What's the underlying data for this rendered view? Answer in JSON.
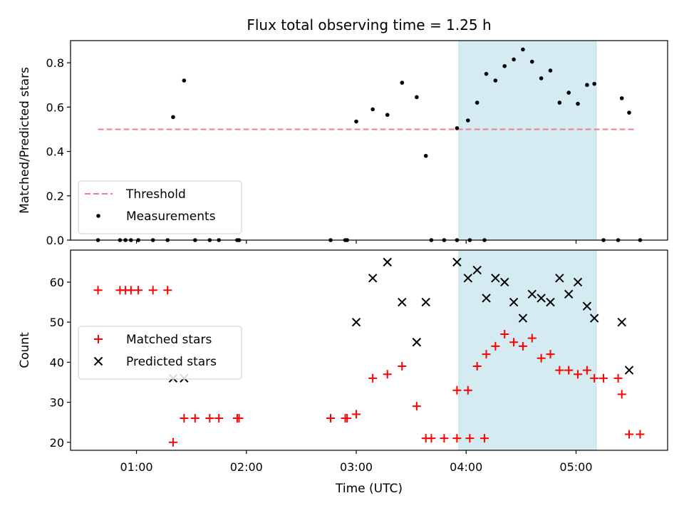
{
  "chart_data": [
    {
      "type": "scatter",
      "panel": "top",
      "title": "Flux total observing time = 1.25 h",
      "xlabel": "",
      "ylabel": "Matched/Predicted stars",
      "ylim": [
        0,
        0.9
      ],
      "yticks": [
        0.0,
        0.2,
        0.4,
        0.6,
        0.8
      ],
      "ytick_labels": [
        "0.0",
        "0.2",
        "0.4",
        "0.6",
        "0.8"
      ],
      "xlim": [
        "00:24",
        "05:50"
      ],
      "xticks": [
        "01:00",
        "02:00",
        "03:00",
        "04:00",
        "05:00"
      ],
      "shaded_span": [
        "03:56",
        "05:11"
      ],
      "shaded_color": "#d4ebf1",
      "legend_position": "lower left",
      "threshold": {
        "name": "Threshold",
        "y": 0.5,
        "x": [
          "00:39",
          "05:33"
        ],
        "color": "#f08080",
        "style": "dashed"
      },
      "series": [
        {
          "name": "Measurements",
          "marker": "dot",
          "color": "#000000",
          "points": [
            [
              "00:39",
              0
            ],
            [
              "00:51",
              0
            ],
            [
              "00:54",
              0
            ],
            [
              "00:57",
              0
            ],
            [
              "01:01",
              0
            ],
            [
              "01:09",
              0
            ],
            [
              "01:17",
              0
            ],
            [
              "01:20",
              0.555
            ],
            [
              "01:26",
              0.72
            ],
            [
              "01:32",
              0
            ],
            [
              "01:40",
              0
            ],
            [
              "01:45",
              0
            ],
            [
              "01:55",
              0
            ],
            [
              "01:56",
              0
            ],
            [
              "02:46",
              0
            ],
            [
              "02:54",
              0
            ],
            [
              "02:55",
              0
            ],
            [
              "03:00",
              0.535
            ],
            [
              "03:09",
              0.59
            ],
            [
              "03:17",
              0.565
            ],
            [
              "03:25",
              0.71
            ],
            [
              "03:33",
              0.645
            ],
            [
              "03:38",
              0.38
            ],
            [
              "03:41",
              0
            ],
            [
              "03:48",
              0
            ],
            [
              "03:55",
              0
            ],
            [
              "04:02",
              0
            ],
            [
              "04:10",
              0
            ],
            [
              "03:55",
              0.505
            ],
            [
              "04:01",
              0.54
            ],
            [
              "04:06",
              0.62
            ],
            [
              "04:11",
              0.75
            ],
            [
              "04:16",
              0.72
            ],
            [
              "04:21",
              0.785
            ],
            [
              "04:26",
              0.815
            ],
            [
              "04:31",
              0.86
            ],
            [
              "04:36",
              0.805
            ],
            [
              "04:41",
              0.73
            ],
            [
              "04:46",
              0.765
            ],
            [
              "04:51",
              0.62
            ],
            [
              "04:56",
              0.665
            ],
            [
              "05:01",
              0.615
            ],
            [
              "05:06",
              0.7
            ],
            [
              "05:10",
              0.705
            ],
            [
              "05:15",
              0
            ],
            [
              "05:23",
              0
            ],
            [
              "05:25",
              0.64
            ],
            [
              "05:29",
              0.575
            ],
            [
              "05:35",
              0
            ]
          ]
        }
      ]
    },
    {
      "type": "scatter",
      "panel": "bottom",
      "title": "",
      "xlabel": "Time (UTC)",
      "ylabel": "Count",
      "ylim": [
        18,
        68
      ],
      "yticks": [
        20,
        30,
        40,
        50,
        60
      ],
      "ytick_labels": [
        "20",
        "30",
        "40",
        "50",
        "60"
      ],
      "xlim": [
        "00:24",
        "05:50"
      ],
      "xticks": [
        "01:00",
        "02:00",
        "03:00",
        "04:00",
        "05:00"
      ],
      "xtick_labels": [
        "01:00",
        "02:00",
        "03:00",
        "04:00",
        "05:00"
      ],
      "shaded_span": [
        "03:56",
        "05:11"
      ],
      "shaded_color": "#d4ebf1",
      "legend_position": "center left",
      "series": [
        {
          "name": "Matched stars",
          "marker": "plus",
          "color": "#ff0000",
          "points": [
            [
              "00:39",
              58
            ],
            [
              "00:51",
              58
            ],
            [
              "00:54",
              58
            ],
            [
              "00:57",
              58
            ],
            [
              "01:01",
              58
            ],
            [
              "01:09",
              58
            ],
            [
              "01:17",
              58
            ],
            [
              "01:20",
              20
            ],
            [
              "01:26",
              26
            ],
            [
              "01:32",
              26
            ],
            [
              "01:40",
              26
            ],
            [
              "01:45",
              26
            ],
            [
              "01:55",
              26
            ],
            [
              "01:56",
              26
            ],
            [
              "02:46",
              26
            ],
            [
              "02:54",
              26
            ],
            [
              "02:55",
              26
            ],
            [
              "03:00",
              27
            ],
            [
              "03:09",
              36
            ],
            [
              "03:17",
              37
            ],
            [
              "03:25",
              39
            ],
            [
              "03:33",
              29
            ],
            [
              "03:38",
              21
            ],
            [
              "03:41",
              21
            ],
            [
              "03:48",
              21
            ],
            [
              "03:55",
              21
            ],
            [
              "04:02",
              21
            ],
            [
              "04:10",
              21
            ],
            [
              "03:55",
              33
            ],
            [
              "04:01",
              33
            ],
            [
              "04:06",
              39
            ],
            [
              "04:11",
              42
            ],
            [
              "04:16",
              44
            ],
            [
              "04:21",
              47
            ],
            [
              "04:26",
              45
            ],
            [
              "04:31",
              44
            ],
            [
              "04:36",
              46
            ],
            [
              "04:41",
              41
            ],
            [
              "04:46",
              42
            ],
            [
              "04:51",
              38
            ],
            [
              "04:56",
              38
            ],
            [
              "05:01",
              37
            ],
            [
              "05:06",
              38
            ],
            [
              "05:10",
              36
            ],
            [
              "05:15",
              36
            ],
            [
              "05:23",
              36
            ],
            [
              "05:25",
              32
            ],
            [
              "05:29",
              22
            ],
            [
              "05:35",
              22
            ]
          ]
        },
        {
          "name": "Predicted stars",
          "marker": "x",
          "color": "#000000",
          "points": [
            [
              "01:20",
              36
            ],
            [
              "01:26",
              36
            ],
            [
              "03:00",
              50
            ],
            [
              "03:09",
              61
            ],
            [
              "03:17",
              65
            ],
            [
              "03:25",
              55
            ],
            [
              "03:33",
              45
            ],
            [
              "03:38",
              55
            ],
            [
              "03:55",
              65
            ],
            [
              "04:01",
              61
            ],
            [
              "04:06",
              63
            ],
            [
              "04:11",
              56
            ],
            [
              "04:16",
              61
            ],
            [
              "04:21",
              60
            ],
            [
              "04:26",
              55
            ],
            [
              "04:31",
              51
            ],
            [
              "04:36",
              57
            ],
            [
              "04:41",
              56
            ],
            [
              "04:46",
              55
            ],
            [
              "04:51",
              61
            ],
            [
              "04:56",
              57
            ],
            [
              "05:01",
              60
            ],
            [
              "05:06",
              54
            ],
            [
              "05:10",
              51
            ],
            [
              "05:25",
              50
            ],
            [
              "05:29",
              38
            ]
          ]
        }
      ]
    }
  ]
}
